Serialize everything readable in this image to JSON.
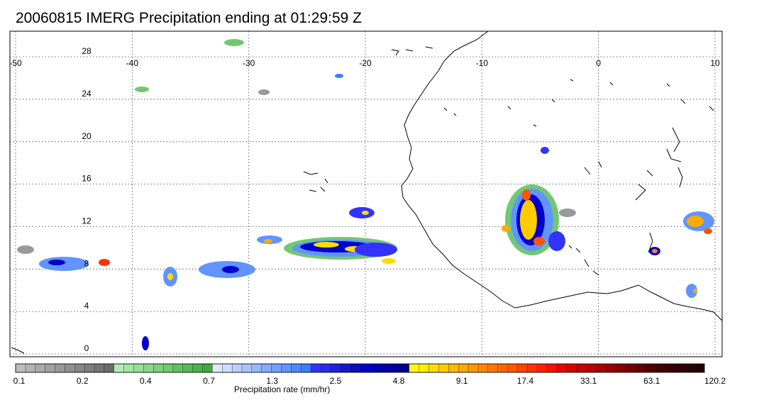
{
  "title": "20060815 IMERG Precipitation ending at 01:29:59 Z",
  "map": {
    "lon_range": [
      -50,
      10
    ],
    "lat_range": [
      -1,
      32
    ],
    "lon_ticks": [
      "-50",
      "-40",
      "-30",
      "-20",
      "-10",
      "0",
      "10"
    ],
    "lat_ticks": [
      "0",
      "4",
      "8",
      "12",
      "16",
      "20",
      "24",
      "28"
    ],
    "gridlines": "dotted"
  },
  "colorbar": {
    "label": "Precipitation rate (mm/hr)",
    "tick_labels": [
      "0.1",
      "0.2",
      "0.4",
      "0.7",
      "1.3",
      "2.5",
      "4.8",
      "9.1",
      "17.4",
      "33.1",
      "63.1",
      "120.2"
    ],
    "colors": [
      "#bdbdbd",
      "#b4b4b4",
      "#ababab",
      "#a2a2a2",
      "#999999",
      "#909090",
      "#878787",
      "#7e7e7e",
      "#757575",
      "#6c6c6c",
      "#b3ecb3",
      "#a6e5a6",
      "#99dd99",
      "#8cd68c",
      "#7fcf7f",
      "#72c872",
      "#65c065",
      "#58b958",
      "#4bb24b",
      "#3eab3e",
      "#dfe8ff",
      "#cddcff",
      "#bbd0ff",
      "#a9c4ff",
      "#97b8ff",
      "#85acff",
      "#73a0ff",
      "#6194ff",
      "#4f88ff",
      "#3d7cff",
      "#3333ff",
      "#2a2aee",
      "#2121dd",
      "#1818cc",
      "#0f0fbb",
      "#0000cc",
      "#0000bb",
      "#0000aa",
      "#000099",
      "#000088",
      "#ffff00",
      "#ffee00",
      "#ffdd00",
      "#ffcc00",
      "#ffbb00",
      "#ffaa00",
      "#ff9900",
      "#ff8800",
      "#ff7700",
      "#ff6600",
      "#ff5500",
      "#ff4400",
      "#ff3300",
      "#ff2200",
      "#ff1100",
      "#ee0000",
      "#dd0000",
      "#cc0000",
      "#bb0000",
      "#aa0000",
      "#990000",
      "#880000",
      "#770000",
      "#660000",
      "#550000",
      "#440000",
      "#3a0000",
      "#300000",
      "#2a0000",
      "#220000"
    ]
  }
}
